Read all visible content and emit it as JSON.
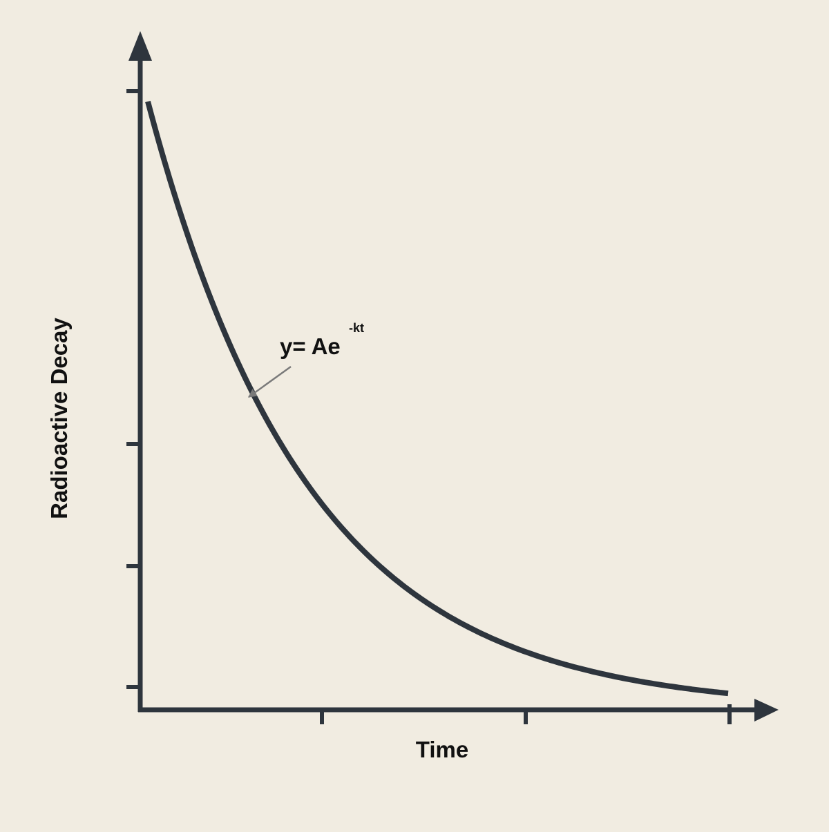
{
  "chart_data": {
    "type": "line",
    "x_label": "Time",
    "y_label": "Radioactive Decay",
    "annotation": {
      "text": "y= Ae",
      "superscript": "-kt"
    }
  }
}
